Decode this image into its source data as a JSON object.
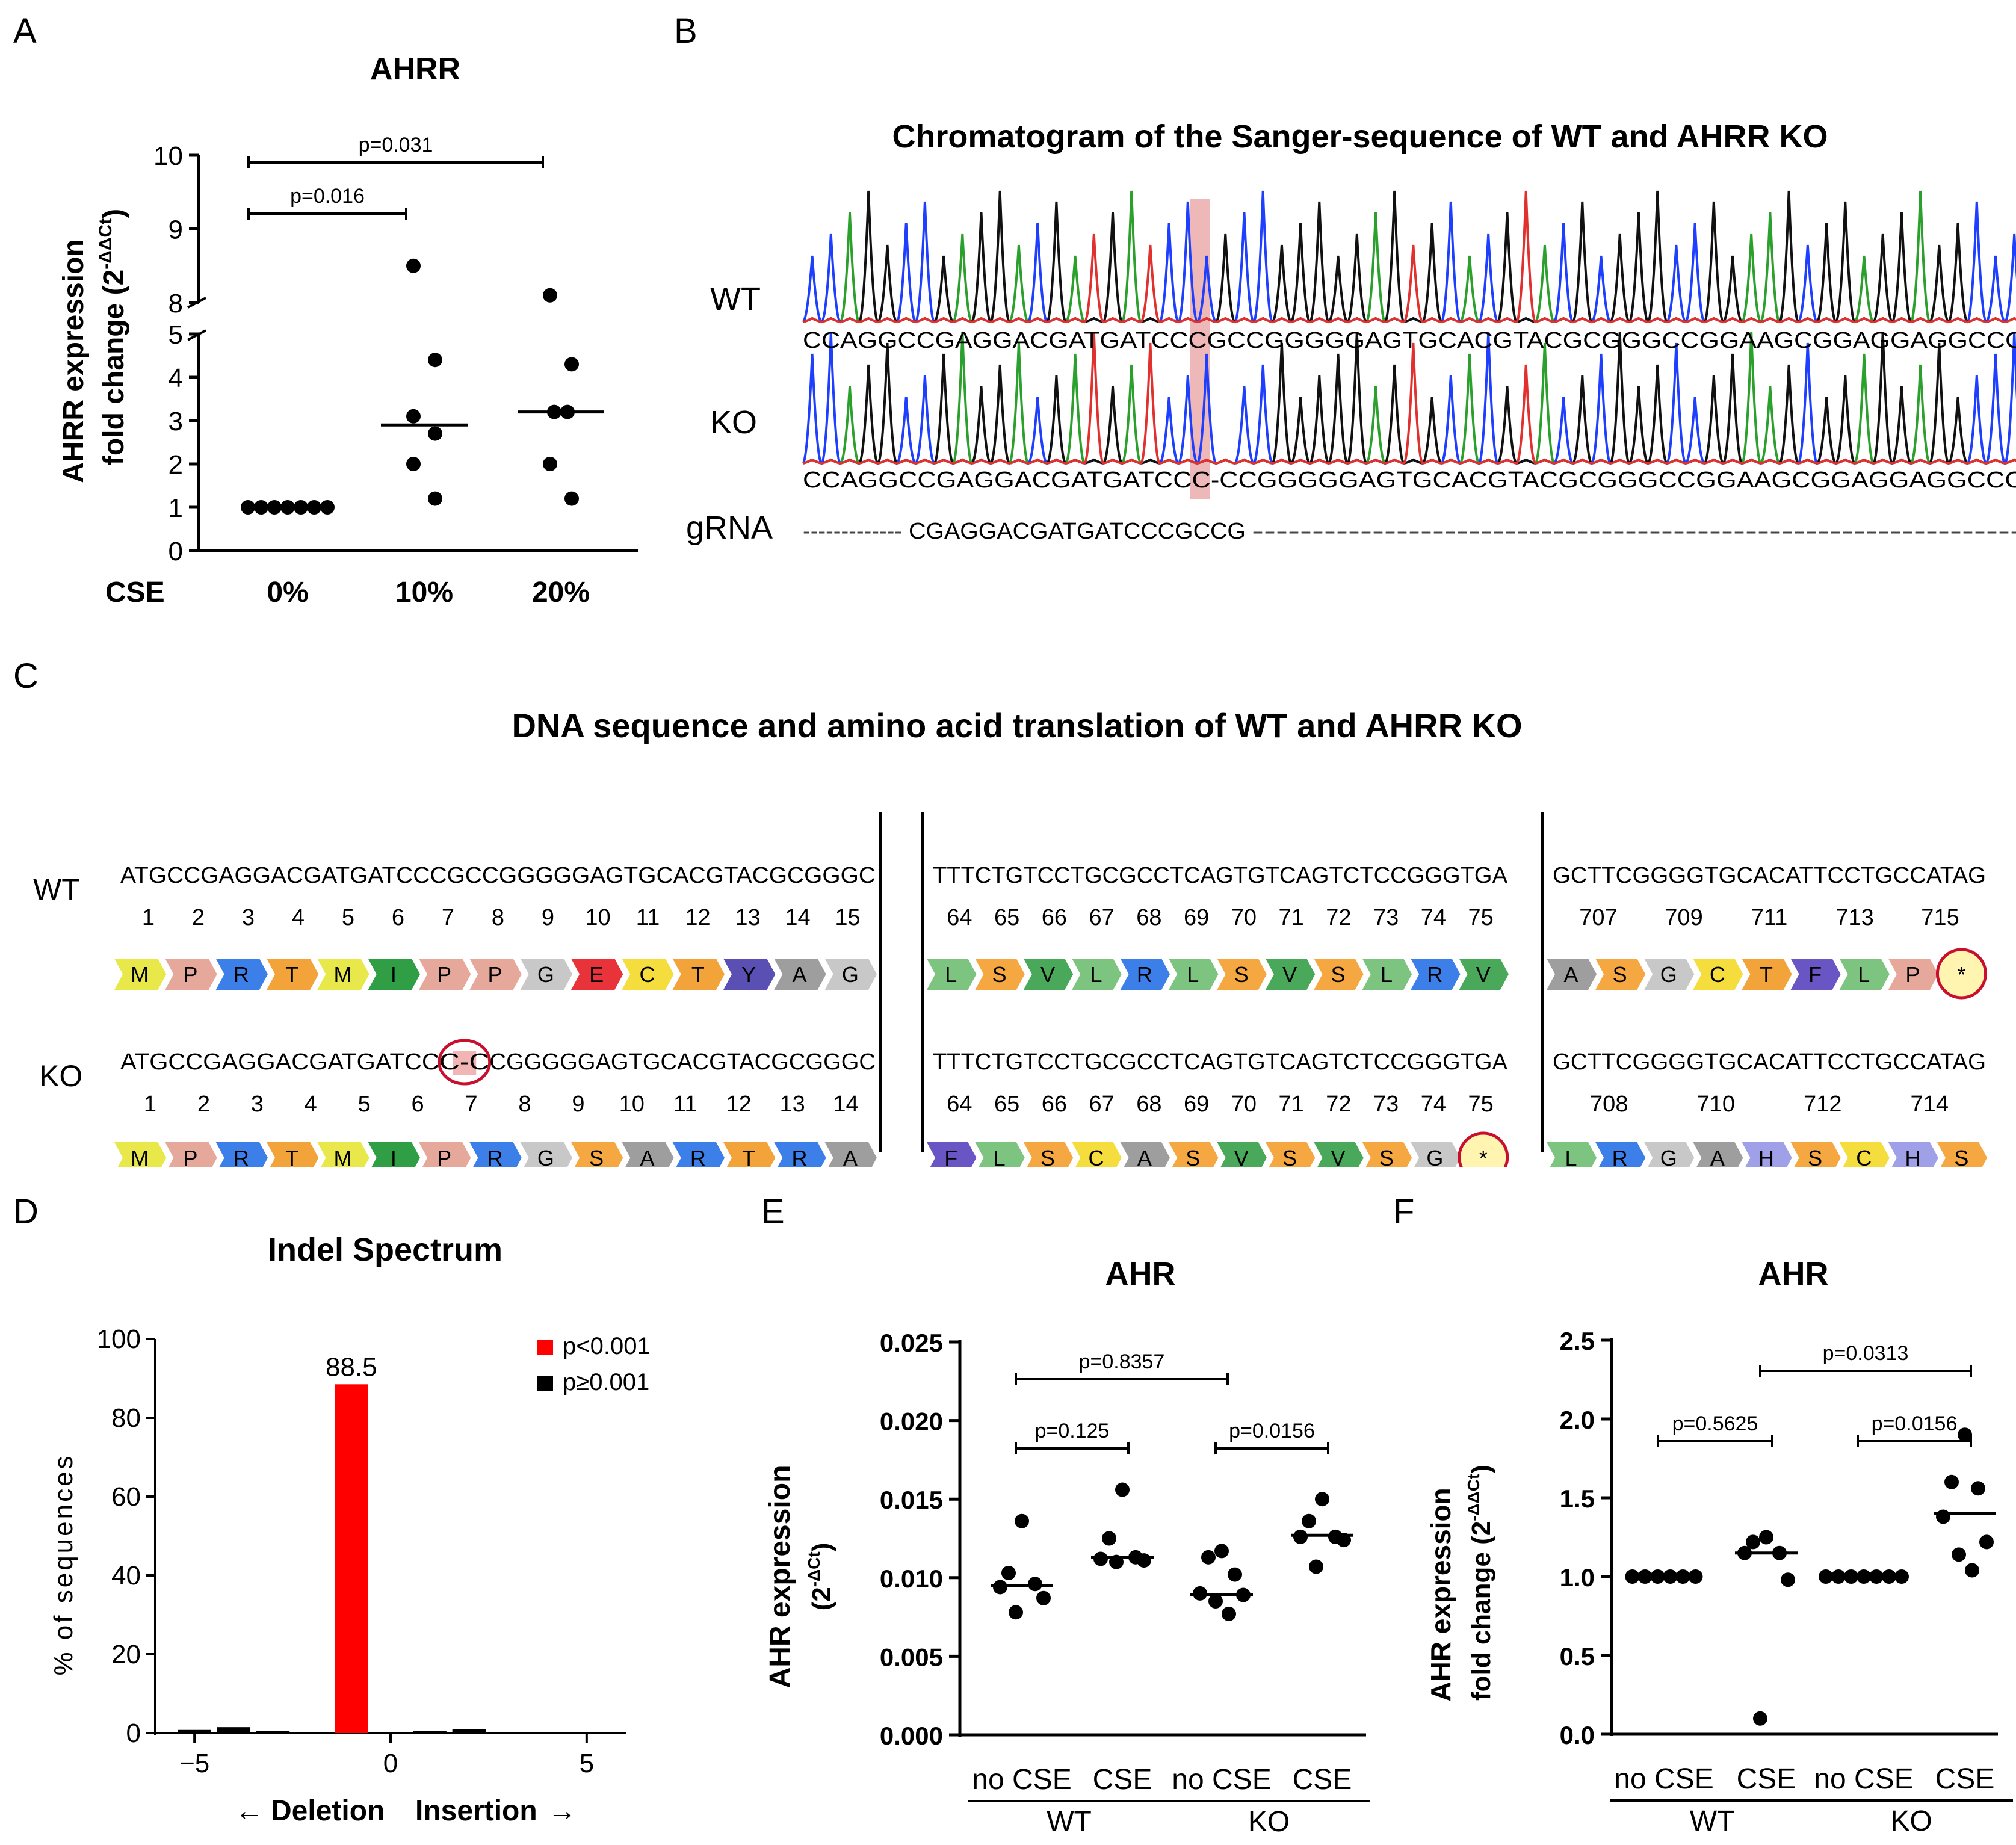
{
  "panel_letters": {
    "a": "A",
    "b": "B",
    "c": "C",
    "d": "D",
    "e": "E",
    "f": "F"
  },
  "chart_data": [
    {
      "id": "A",
      "type": "scatter",
      "title": "AHRR",
      "ylabel_line1": "AHRR expression",
      "ylabel_line2": "fold change (2",
      "ylabel_sup": "-ΔΔCt",
      "ylabel_close": ")",
      "xgroup_label": "CSE",
      "categories": [
        "0%",
        "10%",
        "20%"
      ],
      "yticks_lower": [
        "0",
        "1",
        "2",
        "3",
        "4",
        "5"
      ],
      "yticks_upper": [
        "8",
        "9",
        "10"
      ],
      "ylim_lower": [
        0,
        5
      ],
      "ylim_upper": [
        8,
        10
      ],
      "points": [
        [
          1,
          1,
          1,
          1,
          1,
          1,
          1
        ],
        [
          8.5,
          4.4,
          3.1,
          2.7,
          2.0,
          1.2
        ],
        [
          8.1,
          4.3,
          3.2,
          3.2,
          2.0,
          1.2
        ]
      ],
      "medians": [
        1,
        2.9,
        3.2
      ],
      "comparisons": [
        {
          "label": "p=0.016",
          "from": 0,
          "to": 1
        },
        {
          "label": "p=0.031",
          "from": 0,
          "to": 2
        }
      ]
    },
    {
      "id": "D",
      "type": "bar",
      "title": "Indel Spectrum",
      "ylabel": "% of sequences",
      "xlabel_left": "Deletion",
      "xlabel_right": "Insertion",
      "x": [
        -5,
        -4,
        -3,
        -1,
        1,
        2
      ],
      "values": [
        0.8,
        1.5,
        0.6,
        88.5,
        0.5,
        1.0
      ],
      "colors": [
        "#000000",
        "#000000",
        "#000000",
        "#ff0000",
        "#000000",
        "#000000"
      ],
      "bar_label": "88.5",
      "xticks": [
        "-5",
        "0",
        "5"
      ],
      "yticks": [
        "0",
        "20",
        "40",
        "60",
        "80",
        "100"
      ],
      "ylim": [
        0,
        100
      ],
      "xlim": [
        -6,
        6
      ],
      "legend": [
        {
          "label": "p<0.001",
          "color": "#ff0000"
        },
        {
          "label": "p≥0.001",
          "color": "#000000"
        }
      ]
    },
    {
      "id": "E",
      "type": "scatter",
      "title": "AHR",
      "ylabel_line1": "AHR expression",
      "ylabel_line2": "(2",
      "ylabel_sup": "-ΔCt",
      "ylabel_close": ")",
      "categories": [
        "no CSE",
        "CSE",
        "no CSE",
        "CSE"
      ],
      "groups": [
        "WT",
        "KO"
      ],
      "yticks": [
        "0.000",
        "0.005",
        "0.010",
        "0.015",
        "0.020",
        "0.025"
      ],
      "ylim": [
        0,
        0.025
      ],
      "points": [
        [
          0.0136,
          0.0103,
          0.0096,
          0.0094,
          0.0087,
          0.0078
        ],
        [
          0.0156,
          0.0125,
          0.0113,
          0.0112,
          0.0111,
          0.011
        ],
        [
          0.0117,
          0.0113,
          0.0102,
          0.009,
          0.0089,
          0.0085,
          0.0077
        ],
        [
          0.015,
          0.0136,
          0.0126,
          0.0126,
          0.0124,
          0.0107
        ]
      ],
      "medians": [
        0.0095,
        0.0113,
        0.0089,
        0.0127
      ],
      "comparisons": [
        {
          "label": "p=0.125",
          "from": 0,
          "to": 1
        },
        {
          "label": "p=0.0156",
          "from": 2,
          "to": 3
        },
        {
          "label": "p=0.8357",
          "from": 0,
          "to": 2
        }
      ]
    },
    {
      "id": "F",
      "type": "scatter",
      "title": "AHR",
      "ylabel_line1": "AHR expression",
      "ylabel_line2": "fold change (2",
      "ylabel_sup": "-ΔΔCt",
      "ylabel_close": ")",
      "categories": [
        "no CSE",
        "CSE",
        "no CSE",
        "CSE"
      ],
      "groups": [
        "WT",
        "KO"
      ],
      "yticks": [
        "0.0",
        "0.5",
        "1.0",
        "1.5",
        "2.0",
        "2.5"
      ],
      "ylim": [
        0,
        2.5
      ],
      "points": [
        [
          1,
          1,
          1,
          1,
          1,
          1
        ],
        [
          1.25,
          1.22,
          1.15,
          1.15,
          0.98,
          0.1
        ],
        [
          1,
          1,
          1,
          1,
          1,
          1,
          1
        ],
        [
          1.9,
          1.6,
          1.56,
          1.38,
          1.22,
          1.14,
          1.04
        ]
      ],
      "medians": [
        1.0,
        1.15,
        1.0,
        1.4
      ],
      "comparisons": [
        {
          "label": "p=0.5625",
          "from": 0,
          "to": 1
        },
        {
          "label": "p=0.0156",
          "from": 2,
          "to": 3
        },
        {
          "label": "p=0.0313",
          "from": 1,
          "to": 3
        }
      ]
    }
  ],
  "panel_b": {
    "title": "Chromatogram of the Sanger-sequence of WT and AHRR KO",
    "rows": [
      {
        "label": "WT",
        "seq": "CCAGGCCGAGGACGATGATCCCGCCGGGGGAGTGCACGTACGCGGGCCGGAAGCGGAGGAGGCCCC"
      },
      {
        "label": "KO",
        "seq": "CCAGGCCGAGGACGATGATCCC-CCGGGGGAGTGCACGTACGCGGGCCGGAAGCGGAGGAGGCCCC"
      }
    ],
    "grna_label": "gRNA",
    "grna_left": "-------------",
    "grna_seq": "CGAGGACGATGATCCCGCCG",
    "grna_right": "-----------------------------------------------------------------",
    "colors": {
      "A": "#2ca02c",
      "C": "#1f3fff",
      "G": "#111111",
      "T": "#e0312f"
    }
  },
  "panel_c": {
    "title": "DNA sequence and amino acid translation of WT and AHRR KO",
    "row_labels": [
      "WT",
      "KO"
    ],
    "blocks": [
      [
        {
          "dna": "ATGCCGAGGACGATGATCCCGCCGGGGGAGTGCACGTACGCGGGC",
          "nums": [
            "1",
            "2",
            "3",
            "4",
            "5",
            "6",
            "7",
            "8",
            "9",
            "10",
            "11",
            "12",
            "13",
            "14",
            "15"
          ],
          "aa": [
            "M",
            "P",
            "R",
            "T",
            "M",
            "I",
            "P",
            "P",
            "G",
            "E",
            "C",
            "T",
            "Y",
            "A",
            "G"
          ]
        },
        {
          "dna": "TTTCTGTCCTGCGCCTCAGTGTCAGTCTCCGGGTGA",
          "nums": [
            "64",
            "65",
            "66",
            "67",
            "68",
            "69",
            "70",
            "71",
            "72",
            "73",
            "74",
            "75"
          ],
          "aa": [
            "L",
            "S",
            "V",
            "L",
            "R",
            "L",
            "S",
            "V",
            "S",
            "L",
            "R",
            "V"
          ]
        },
        {
          "dna": "GCTTCGGGGTGCACATTCCTGCCATAG",
          "nums": [
            "707",
            "709",
            "711",
            "713",
            "715"
          ],
          "aa": [
            "A",
            "S",
            "G",
            "C",
            "T",
            "F",
            "L",
            "P",
            "*"
          ]
        }
      ],
      [
        {
          "dna_left": "ATGCCGAGGACGATGATCC",
          "dna_mid": "C-C",
          "dna_right": "CGGGGGAGTGCACGTACGCGGGC",
          "nums": [
            "1",
            "2",
            "3",
            "4",
            "5",
            "6",
            "7",
            "8",
            "9",
            "10",
            "11",
            "12",
            "13",
            "14"
          ],
          "aa": [
            "M",
            "P",
            "R",
            "T",
            "M",
            "I",
            "P",
            "R",
            "G",
            "S",
            "A",
            "R",
            "T",
            "R",
            "A"
          ]
        },
        {
          "dna": "TTTCTGTCCTGCGCCTCAGTGTCAGTCTCCGGGTGA",
          "nums": [
            "64",
            "65",
            "66",
            "67",
            "68",
            "69",
            "70",
            "71",
            "72",
            "73",
            "74",
            "75"
          ],
          "aa": [
            "F",
            "L",
            "S",
            "C",
            "A",
            "S",
            "V",
            "S",
            "V",
            "S",
            "G",
            "*"
          ]
        },
        {
          "dna": "GCTTCGGGGTGCACATTCCTGCCATAG",
          "nums": [
            "708",
            "710",
            "712",
            "714"
          ],
          "aa": [
            "L",
            "R",
            "G",
            "A",
            "H",
            "S",
            "C",
            "H",
            "S"
          ]
        }
      ]
    ],
    "aa_colors": {
      "M": "#e8e84a",
      "P": "#e7a89c",
      "R": "#3d7fe8",
      "T": "#f2a33a",
      "I": "#2f9e44",
      "G": "#c8c8c8",
      "E": "#e8333a",
      "C": "#f5dd3d",
      "Y": "#5a4fb3",
      "A": "#9e9e9e",
      "L": "#7cc47f",
      "S": "#f5a742",
      "V": "#4aa85a",
      "F": "#6a55c4",
      "H": "#9fa0e8",
      "*": "#fff4b0"
    }
  }
}
